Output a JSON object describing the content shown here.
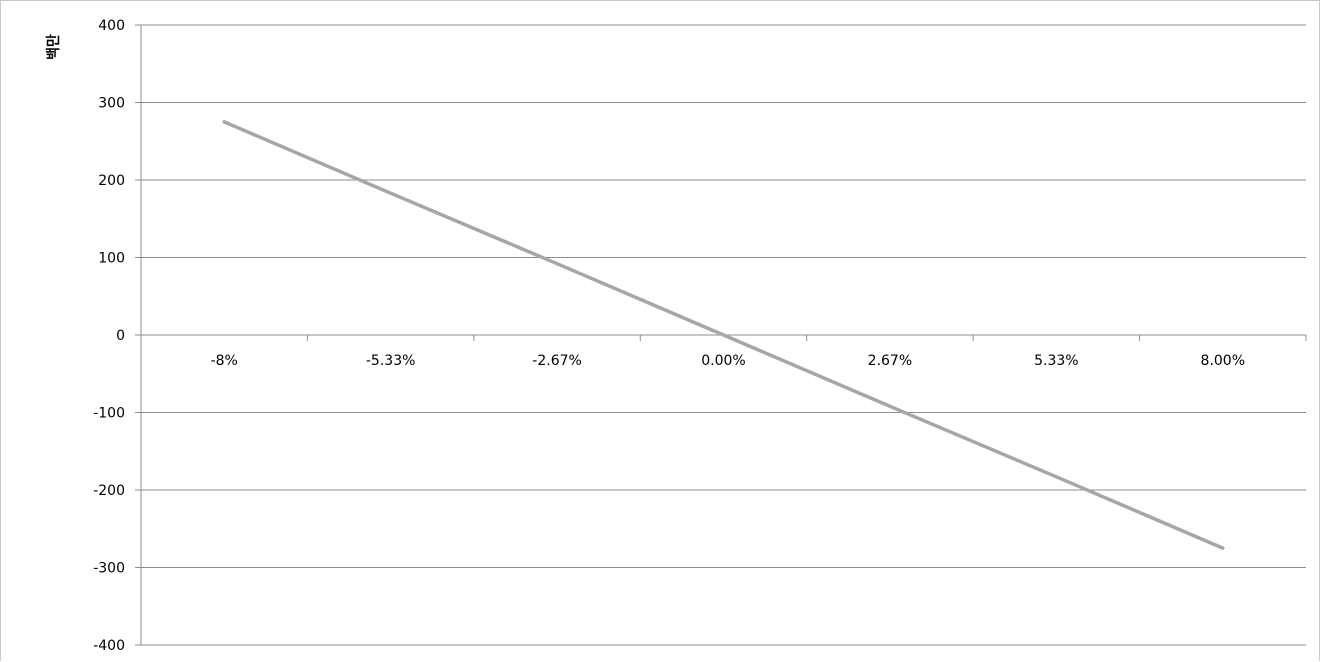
{
  "chart_data": {
    "type": "line",
    "title": "",
    "xlabel": "",
    "ylabel": "백만",
    "categories": [
      "-8%",
      "-5.33%",
      "-2.67%",
      "0.00%",
      "2.67%",
      "5.33%",
      "8.00%"
    ],
    "x": [
      -8,
      -5.33,
      -2.67,
      0,
      2.67,
      5.33,
      8
    ],
    "series": [
      {
        "values": [
          275,
          183,
          92,
          0,
          -92,
          -183,
          -275
        ],
        "color": "#a6a6a6"
      }
    ],
    "ylim": [
      -400,
      400
    ],
    "yticks": [
      400,
      300,
      200,
      100,
      0,
      -100,
      -200,
      -300,
      -400
    ],
    "grid": true,
    "legend": "none"
  }
}
